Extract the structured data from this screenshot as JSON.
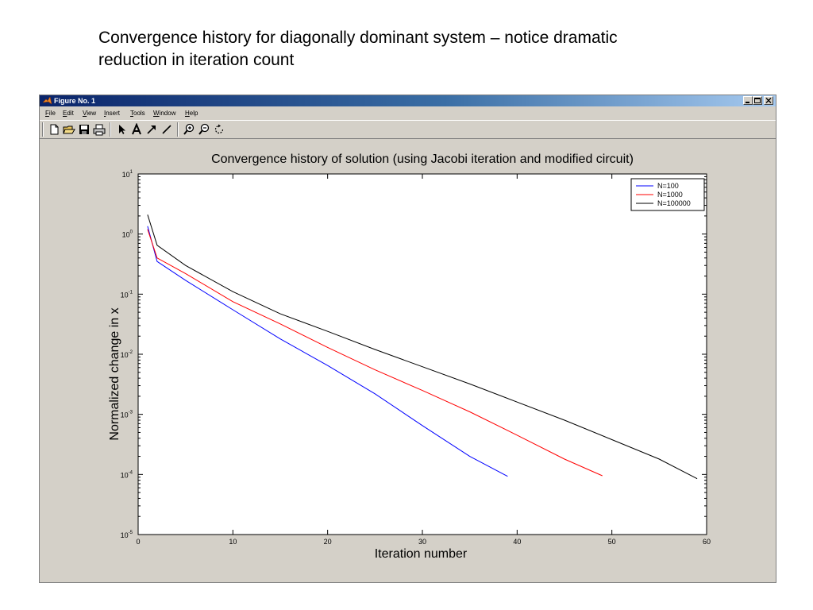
{
  "caption": {
    "line1": "Convergence history for diagonally dominant system – notice dramatic",
    "line2": "reduction in iteration count"
  },
  "window": {
    "title": "Figure No. 1",
    "buttons": [
      "minimize",
      "maximize",
      "close"
    ]
  },
  "menu": [
    "File",
    "Edit",
    "View",
    "Insert",
    "Tools",
    "Window",
    "Help"
  ],
  "toolbar": [
    "new-figure-icon",
    "open-file-icon",
    "save-icon",
    "print-icon",
    "select-arrow-icon",
    "text-tool-icon",
    "arrow-tool-icon",
    "line-tool-icon",
    "zoom-in-icon",
    "zoom-out-icon",
    "rotate-icon"
  ],
  "colors": {
    "n100": "#0000ff",
    "n1000": "#ff0000",
    "n100000": "#000000"
  },
  "chart_data": {
    "type": "line",
    "title": "Convergence history of solution (using Jacobi iteration and modified circuit)",
    "xlabel": "Iteration number",
    "ylabel": "Normalized change in x",
    "xlim": [
      0,
      60
    ],
    "ylim_exponent": [
      -5,
      1
    ],
    "yscale": "log",
    "x_ticks": [
      "0",
      "10",
      "20",
      "30",
      "40",
      "50",
      "60"
    ],
    "y_tick_base": "10",
    "y_tick_exponents": [
      "-5",
      "-4",
      "-3",
      "-2",
      "-1",
      "0",
      "1"
    ],
    "legend_position": "top-right",
    "series": [
      {
        "name": "N=100",
        "color": "#0000ff",
        "x": [
          1,
          2,
          5,
          10,
          15,
          20,
          25,
          30,
          35,
          39
        ],
        "y": [
          1.35,
          0.35,
          0.17,
          0.055,
          0.018,
          0.0065,
          0.0022,
          0.00065,
          0.0002,
          9.3e-05
        ]
      },
      {
        "name": "N=1000",
        "color": "#ff0000",
        "x": [
          1,
          2,
          5,
          10,
          15,
          20,
          25,
          30,
          35,
          40,
          45,
          49
        ],
        "y": [
          1.2,
          0.4,
          0.22,
          0.075,
          0.032,
          0.013,
          0.0055,
          0.0025,
          0.0011,
          0.00045,
          0.00018,
          9.5e-05
        ]
      },
      {
        "name": "N=100000",
        "color": "#000000",
        "x": [
          1,
          2,
          5,
          10,
          15,
          20,
          25,
          30,
          35,
          40,
          45,
          50,
          55,
          59
        ],
        "y": [
          2.1,
          0.65,
          0.3,
          0.11,
          0.047,
          0.024,
          0.012,
          0.0062,
          0.0032,
          0.0016,
          0.0008,
          0.00038,
          0.00018,
          8.5e-05
        ]
      }
    ]
  }
}
